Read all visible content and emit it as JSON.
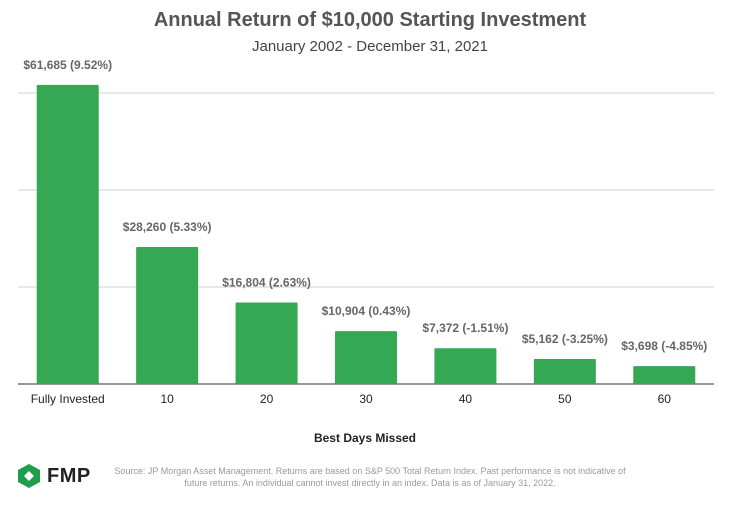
{
  "chart_data": {
    "type": "bar",
    "title": "Annual Return of $10,000 Starting Investment",
    "subtitle": "January 2002 - December 31, 2021",
    "xlabel": "Best Days Missed",
    "ylabel": "",
    "categories": [
      "Fully Invested",
      "10",
      "20",
      "30",
      "40",
      "50",
      "60"
    ],
    "values": [
      61685,
      28260,
      16804,
      10904,
      7372,
      5162,
      3698
    ],
    "data_labels": [
      "$61,685 (9.52%)",
      "$28,260 (5.33%)",
      "$16,804 (2.63%)",
      "$10,904 (0.43%)",
      "$7,372 (-1.51%)",
      "$5,162 (-3.25%)",
      "$3,698 (-4.85%)"
    ],
    "ylim": [
      0,
      64000
    ],
    "gridlines": [
      20000,
      40000,
      60000
    ],
    "grid": true,
    "y_tick_labels_shown": false,
    "bar_color": "#34a853"
  },
  "footer": {
    "source": "Source: JP Morgan Asset Management. Returns are based on S&P 500 Total Return Index. Past performance is not indicative of future returns. An individual cannot invest directly in an index. Data is as of January 31, 2022.",
    "logo_text": "FMP",
    "logo_color": "#1e9e4a"
  }
}
